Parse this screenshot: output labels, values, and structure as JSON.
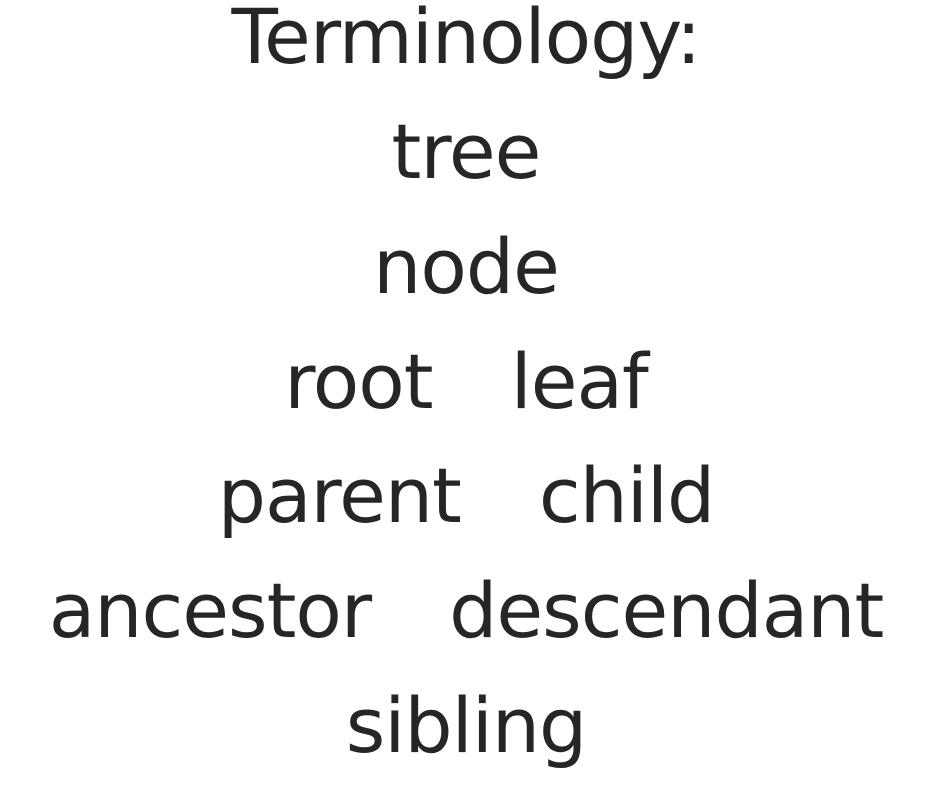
{
  "slide": {
    "title": "Terminology:",
    "terms": {
      "tree": "tree",
      "node": "node",
      "root": "root",
      "leaf": "leaf",
      "parent": "parent",
      "child": "child",
      "ancestor": "ancestor",
      "descendant": "descendant",
      "sibling": "sibling"
    },
    "text_color": "#262626",
    "background_color": "#ffffff"
  }
}
